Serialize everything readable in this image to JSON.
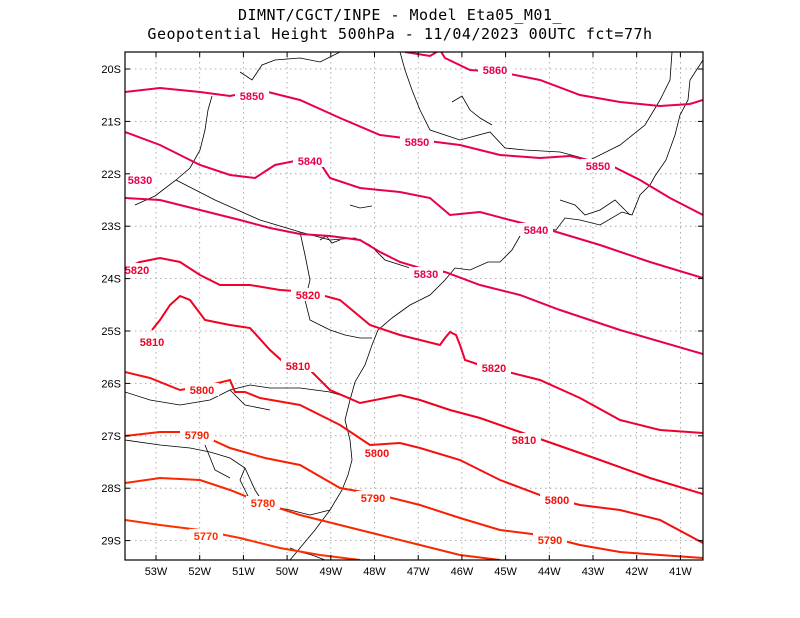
{
  "title_line1": "DIMNT/CGCT/INPE  -  Model Eta05_M01_",
  "title_line2": "Geopotential Height 500hPa  -  11/04/2023 00UTC fct=77h",
  "map": {
    "lon_labels": [
      "53W",
      "52W",
      "51W",
      "50W",
      "49W",
      "48W",
      "47W",
      "46W",
      "45W",
      "44W",
      "43W",
      "42W",
      "41W"
    ],
    "lat_labels": [
      "20S",
      "21S",
      "22S",
      "23S",
      "24S",
      "25S",
      "26S",
      "27S",
      "28S",
      "29S"
    ]
  },
  "colors": {
    "contour_high": "#e8004f",
    "contour_low": "#ff2a00",
    "coast": "#000000",
    "grid": "#999999"
  },
  "contours": [
    {
      "value": 5860,
      "label": "5860",
      "color": "#e8004f"
    },
    {
      "value": 5850,
      "label": "5850",
      "color": "#e8004f"
    },
    {
      "value": 5840,
      "label": "5840",
      "color": "#e8004f"
    },
    {
      "value": 5830,
      "label": "5830",
      "color": "#e8004f"
    },
    {
      "value": 5820,
      "label": "5820",
      "color": "#ee0030"
    },
    {
      "value": 5810,
      "label": "5810",
      "color": "#f20020"
    },
    {
      "value": 5800,
      "label": "5800",
      "color": "#f51010"
    },
    {
      "value": 5790,
      "label": "5790",
      "color": "#f82000"
    },
    {
      "value": 5780,
      "label": "5780",
      "color": "#fa2800"
    },
    {
      "value": 5770,
      "label": "5770",
      "color": "#ff3000"
    }
  ]
}
